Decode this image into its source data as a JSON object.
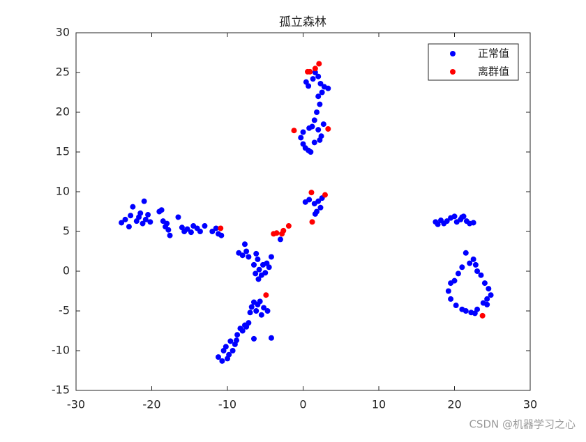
{
  "chart_data": {
    "type": "scatter",
    "title": "孤立森林",
    "xlim": [
      -30,
      30
    ],
    "xticks": [
      -30,
      -20,
      -10,
      0,
      10,
      20,
      30
    ],
    "ylim": [
      -15,
      30
    ],
    "yticks": [
      -15,
      -10,
      -5,
      0,
      5,
      10,
      15,
      20,
      25,
      30
    ],
    "legend_position": "upper-right",
    "series": [
      {
        "name": "正常值",
        "color": "#0000ff",
        "x": [
          -24,
          -23.5,
          -23,
          -22.8,
          -22.5,
          -22,
          -21.7,
          -21.5,
          -21.2,
          -21,
          -20.8,
          -20.5,
          -20.2,
          -19,
          -18.7,
          -18.5,
          -18.2,
          -18,
          -17.8,
          -17.6,
          -16.5,
          -16,
          -15.7,
          -15.3,
          -14.8,
          -14.5,
          -14,
          -13.6,
          -13,
          -12,
          -11.5,
          -11.2,
          -10.8,
          -8.5,
          -8,
          -7.7,
          -7.5,
          -7.2,
          -6.5,
          -6.2,
          -6,
          -5.8,
          -5.5,
          -5.3,
          -5,
          -4.8,
          -4.5,
          -4.2,
          -6.3,
          -5.9,
          -3,
          -11.2,
          -10.7,
          -10.5,
          -10.2,
          -10,
          -9.8,
          -9.6,
          -9.3,
          -9,
          -8.7,
          -8.3,
          -8,
          -7.7,
          -7.5,
          -7.2,
          -7,
          -6.8,
          -6.5,
          -6.2,
          -6,
          -5.7,
          -5.5,
          -5.2,
          -4.7,
          -4.2,
          -8.8,
          -6.5,
          0.4,
          0.7,
          1.3,
          1.6,
          2,
          2.3,
          2.5,
          2,
          2.8,
          3.3,
          2.2,
          1.8,
          1.5,
          1.2,
          0.8,
          2,
          2.7,
          0,
          -0.3,
          0,
          0.3,
          0.7,
          1,
          1.5,
          2.2,
          2.4,
          0.3,
          0.8,
          1.5,
          2,
          2.5,
          1.8,
          2.3,
          1.6,
          17.5,
          17.8,
          18.2,
          18.6,
          19,
          19.5,
          20,
          20.3,
          20.8,
          21.2,
          21.6,
          22,
          22.5,
          21,
          21.5,
          22,
          22.5,
          22.8,
          21,
          20.5,
          20,
          19.5,
          19.2,
          19.5,
          20.2,
          21,
          21.5,
          22.2,
          22.7,
          23,
          23.8,
          24.3,
          24.8,
          24.5,
          24,
          23.5,
          23,
          24.3
        ],
        "values": [
          6.1,
          6.5,
          5.6,
          7,
          8.1,
          6.3,
          6.8,
          7.3,
          6,
          8.8,
          6.5,
          7.1,
          6.2,
          7.5,
          7.7,
          6.3,
          5.6,
          6,
          5.2,
          4.5,
          6.8,
          5.5,
          5,
          5.3,
          4.9,
          5.7,
          5.4,
          5,
          5.7,
          5,
          5.4,
          4.7,
          4.5,
          2.3,
          2,
          3.4,
          2.5,
          1.8,
          0.8,
          2.2,
          1.5,
          0.2,
          -0.5,
          0.8,
          -0.2,
          1,
          0.5,
          1.8,
          -0.3,
          -1,
          4,
          -10.8,
          -11.3,
          -10,
          -9.5,
          -11,
          -10.5,
          -8.8,
          -10,
          -9.2,
          -8,
          -7.2,
          -7.5,
          -6.8,
          -7,
          -6.5,
          -5.2,
          -4.5,
          -3.9,
          -5,
          -4.2,
          -3.8,
          -5.5,
          -4.6,
          -5,
          -8.4,
          -8.7,
          -8.5,
          23.8,
          23.3,
          24.2,
          25,
          24.5,
          23.6,
          22.5,
          22,
          23.2,
          23,
          21,
          20,
          19,
          18.2,
          18,
          17.8,
          18.5,
          17.5,
          16.8,
          16,
          15.5,
          15.2,
          15,
          16.2,
          16.5,
          17,
          8.7,
          9,
          8.5,
          8.8,
          9.2,
          7.5,
          8,
          7.2,
          6.2,
          5.9,
          6.4,
          6,
          6.3,
          6.7,
          6.9,
          6.2,
          6.5,
          6.9,
          6.3,
          6,
          6.1,
          6.8,
          2.3,
          1,
          1.5,
          0.8,
          0.5,
          -0.3,
          -1.2,
          -1.5,
          -2.5,
          -3.5,
          -4.3,
          -4.8,
          -5,
          -5.2,
          -5.3,
          -4.8,
          -4,
          -3.5,
          -3,
          -2.2,
          -1.5,
          -0.5,
          0,
          -4.2
        ]
      },
      {
        "name": "离群值",
        "color": "#ff0000",
        "x": [
          0.6,
          0.9,
          2.1,
          1.6,
          -1.2,
          3.3,
          1.1,
          2.9,
          1.2,
          -10.9,
          -3.9,
          -3.5,
          -2.8,
          -2.6,
          -1.9,
          -4.9,
          23.7
        ],
        "values": [
          25.1,
          25.1,
          26.1,
          25.5,
          17.7,
          17.9,
          9.9,
          9.6,
          6.2,
          5.4,
          4.7,
          4.8,
          4.7,
          5.1,
          5.7,
          -3,
          -5.6
        ]
      }
    ]
  },
  "watermark": "CSDN @机器学习之心"
}
